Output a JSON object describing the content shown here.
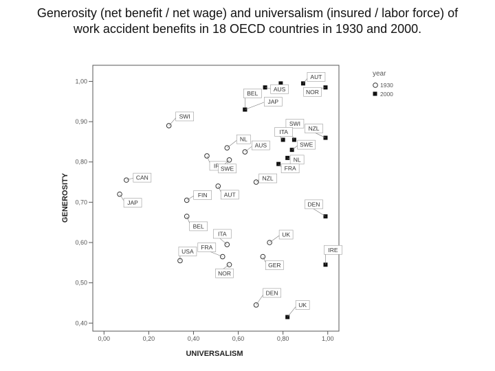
{
  "title": "Generosity (net benefit / net wage) and universalism (insured / labor force) of work accident benefits in 18 OECD countries in 1930 and 2000.",
  "chart_data": {
    "type": "scatter",
    "title": "Generosity (net benefit / net wage) and universalism (insured / labor force) of work accident benefits in 18 OECD countries in 1930 and 2000.",
    "xlabel": "UNIVERSALISM",
    "ylabel": "GENEROSITY",
    "xlim": [
      -0.05,
      1.05
    ],
    "ylim": [
      0.38,
      1.04
    ],
    "x_ticks": [
      "0,00",
      "0,20",
      "0,40",
      "0,60",
      "0,80",
      "1,00"
    ],
    "y_ticks": [
      "0,40",
      "0,50",
      "0,60",
      "0,70",
      "0,80",
      "0,90",
      "1,00"
    ],
    "grid": false,
    "legend": {
      "title": "year",
      "position": "top-right",
      "entries": [
        "1930",
        "2000"
      ]
    },
    "series": [
      {
        "name": "1930",
        "marker": "open-circle",
        "points": [
          {
            "label": "SWI",
            "x": 0.29,
            "y": 0.89
          },
          {
            "label": "NL",
            "x": 0.55,
            "y": 0.835
          },
          {
            "label": "AUS",
            "x": 0.63,
            "y": 0.825
          },
          {
            "label": "IRE",
            "x": 0.46,
            "y": 0.815
          },
          {
            "label": "SWE",
            "x": 0.56,
            "y": 0.805
          },
          {
            "label": "CAN",
            "x": 0.1,
            "y": 0.755
          },
          {
            "label": "NZL",
            "x": 0.68,
            "y": 0.75
          },
          {
            "label": "AUT",
            "x": 0.51,
            "y": 0.74
          },
          {
            "label": "JAP",
            "x": 0.07,
            "y": 0.72
          },
          {
            "label": "FIN",
            "x": 0.37,
            "y": 0.705
          },
          {
            "label": "BEL",
            "x": 0.37,
            "y": 0.665
          },
          {
            "label": "ITA",
            "x": 0.55,
            "y": 0.595
          },
          {
            "label": "UK",
            "x": 0.74,
            "y": 0.6
          },
          {
            "label": "USA",
            "x": 0.34,
            "y": 0.555
          },
          {
            "label": "FRA",
            "x": 0.53,
            "y": 0.565
          },
          {
            "label": "GER",
            "x": 0.71,
            "y": 0.565
          },
          {
            "label": "NOR",
            "x": 0.56,
            "y": 0.545
          },
          {
            "label": "DEN",
            "x": 0.68,
            "y": 0.445
          }
        ]
      },
      {
        "name": "2000",
        "marker": "filled-square",
        "points": [
          {
            "label": "AUT",
            "x": 0.89,
            "y": 0.995
          },
          {
            "label": "",
            "x": 0.79,
            "y": 0.995
          },
          {
            "label": "AUS",
            "x": 0.72,
            "y": 0.985
          },
          {
            "label": "NOR",
            "x": 0.99,
            "y": 0.985
          },
          {
            "label": "BEL",
            "x": 0.63,
            "y": 0.93
          },
          {
            "label": "JAP",
            "x": 0.63,
            "y": 0.93
          },
          {
            "label": "SWI",
            "x": 0.85,
            "y": 0.855
          },
          {
            "label": "ITA",
            "x": 0.8,
            "y": 0.855
          },
          {
            "label": "NZL",
            "x": 0.99,
            "y": 0.86
          },
          {
            "label": "SWE",
            "x": 0.84,
            "y": 0.83
          },
          {
            "label": "NL",
            "x": 0.82,
            "y": 0.81
          },
          {
            "label": "FRA",
            "x": 0.78,
            "y": 0.795
          },
          {
            "label": "DEN",
            "x": 0.99,
            "y": 0.665
          },
          {
            "label": "IRE",
            "x": 0.99,
            "y": 0.545
          },
          {
            "label": "UK",
            "x": 0.82,
            "y": 0.415
          }
        ]
      }
    ]
  }
}
